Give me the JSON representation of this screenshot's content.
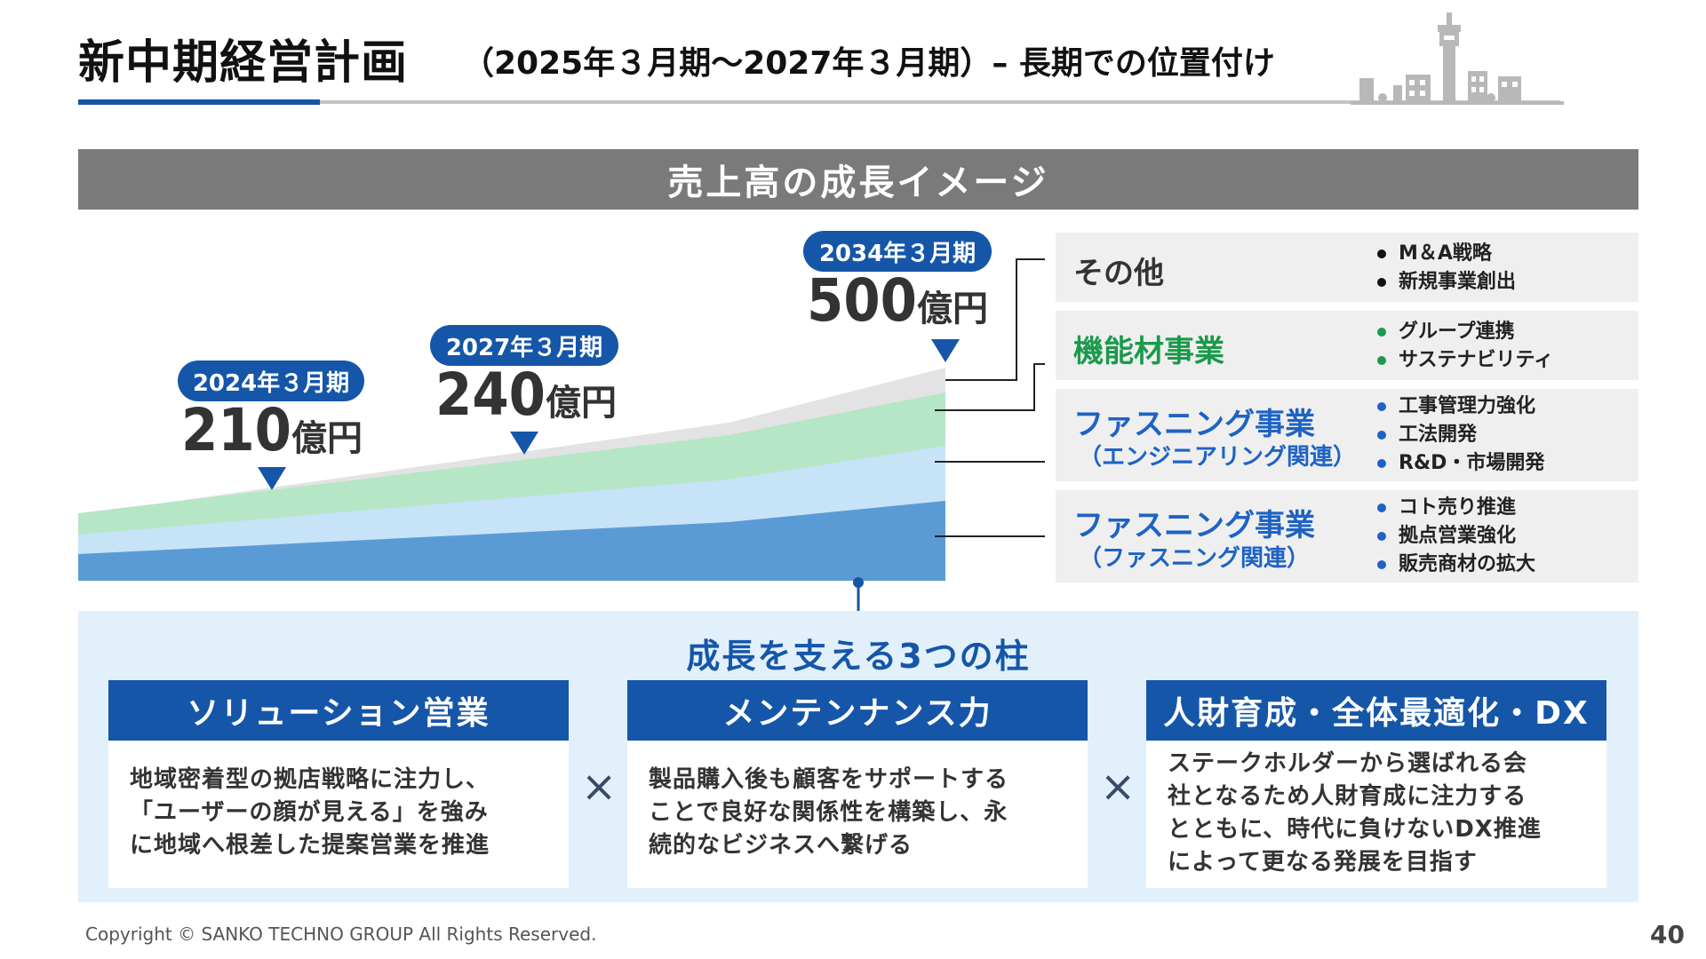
{
  "header": {
    "title": "新中期経営計画",
    "subtitle": "（2025年３月期〜2027年３月期）– 長期での位置付け"
  },
  "banner": {
    "label": "売上高の成長イメージ"
  },
  "chart_data": {
    "type": "area",
    "stacked": true,
    "x": [
      "2024年３月期",
      "2027年３月期",
      "2034年３月期"
    ],
    "milestones": [
      {
        "period": "2024年３月期",
        "value": "210",
        "unit": "億円"
      },
      {
        "period": "2027年３月期",
        "value": "240",
        "unit": "億円"
      },
      {
        "period": "2034年３月期",
        "value": "500",
        "unit": "億円"
      }
    ],
    "series": [
      {
        "name": "ファスニング事業（ファスニング関連）",
        "color": "#5b9bd5"
      },
      {
        "name": "ファスニング事業（エンジニアリング関連）",
        "color": "#c7e3f8"
      },
      {
        "name": "機能材事業",
        "color": "#b5e6c6"
      },
      {
        "name": "その他",
        "color": "#e3e3e3"
      }
    ]
  },
  "segments": [
    {
      "name": "その他",
      "sub": "",
      "color": "#333333",
      "bullet_color": "#111111",
      "points": [
        "M＆A戦略",
        "新規事業創出"
      ]
    },
    {
      "name": "機能材事業",
      "sub": "",
      "color": "#1a9a4a",
      "bullet_color": "#1a9a4a",
      "points": [
        "グループ連携",
        "サステナビリティ"
      ]
    },
    {
      "name": "ファスニング事業",
      "sub": "（エンジニアリング関連）",
      "color": "#1e63c4",
      "bullet_color": "#1e63c4",
      "points": [
        "工事管理力強化",
        "工法開発",
        "R&D・市場開発"
      ]
    },
    {
      "name": "ファスニング事業",
      "sub": "（ファスニング関連）",
      "color": "#1e63c4",
      "bullet_color": "#1e63c4",
      "points": [
        "コト売り推進",
        "拠点営業強化",
        "販売商材の拡大"
      ]
    }
  ],
  "pillars": {
    "title": "成長を支える3つの柱",
    "items": [
      {
        "title": "ソリューション営業",
        "lines": [
          "地域密着型の拠店戦略に注力し、",
          "「ユーザーの顔が見える」を強み",
          "に地域へ根差した提案営業を推進"
        ]
      },
      {
        "title": "メンテンナンス力",
        "lines": [
          "製品購入後も顧客をサポートする",
          "ことで良好な関係性を構築し、永",
          "続的なビジネスへ繋げる"
        ]
      },
      {
        "title": "人財育成・全体最適化・DX",
        "lines": [
          "ステークホルダーから選ばれる会",
          "社となるため人財育成に注力する",
          "とともに、時代に負けないDX推進",
          "によって更なる発展を目指す"
        ]
      }
    ],
    "separator": "×"
  },
  "footer": {
    "copyright": "Copyright © SANKO TECHNO GROUP All Rights Reserved.",
    "page": "40"
  }
}
